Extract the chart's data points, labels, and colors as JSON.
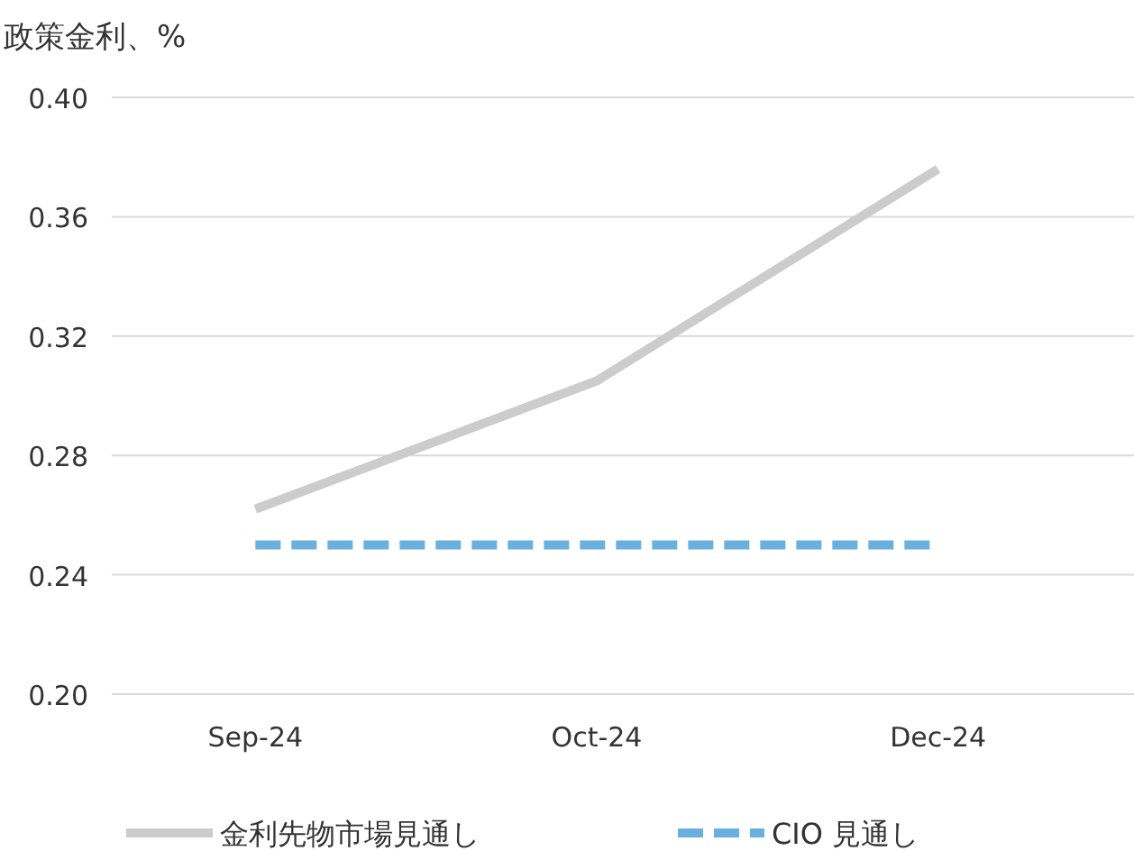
{
  "chart_data": {
    "type": "line",
    "ylabel": "政策金利、%",
    "categories": [
      "Sep-24",
      "Oct-24",
      "Dec-24"
    ],
    "series": [
      {
        "name": "金利先物市場見通し",
        "color": "#cccccc",
        "line_style": "solid",
        "values": [
          0.262,
          0.305,
          0.376
        ]
      },
      {
        "name": "CIO 見通し",
        "color": "#6ab0de",
        "line_style": "dashed",
        "values": [
          0.25,
          0.25,
          0.25
        ]
      }
    ],
    "ylim": [
      0.2,
      0.4
    ],
    "yticks": [
      {
        "value": 0.2,
        "label": "0.20"
      },
      {
        "value": 0.24,
        "label": "0.24"
      },
      {
        "value": 0.28,
        "label": "0.28"
      },
      {
        "value": 0.32,
        "label": "0.32"
      },
      {
        "value": 0.36,
        "label": "0.36"
      },
      {
        "value": 0.4,
        "label": "0.40"
      }
    ],
    "grid": "y",
    "legend": "bottom"
  }
}
